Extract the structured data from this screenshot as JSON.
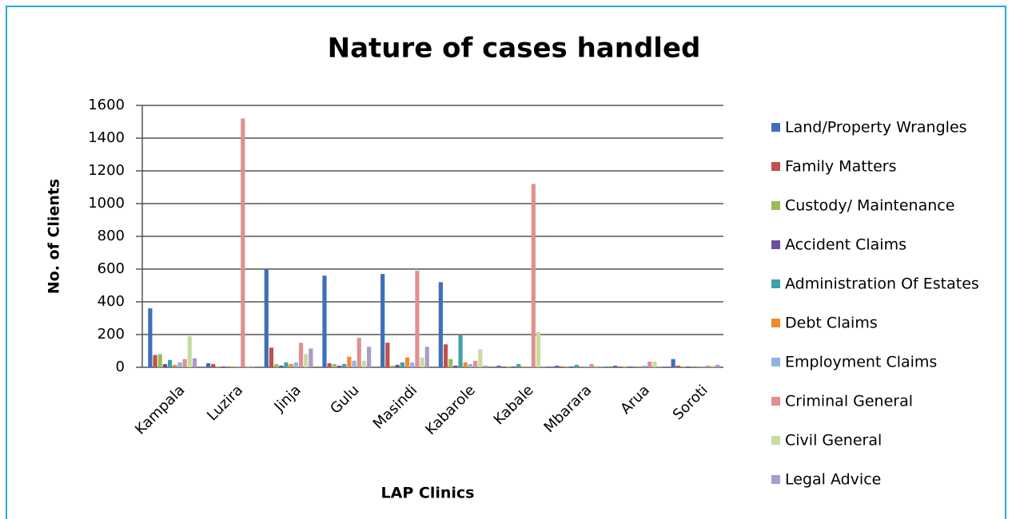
{
  "chart_data": {
    "type": "bar",
    "title": "Nature of cases handled",
    "x_label": "LAP Clinics",
    "y_label": "No. of Clients",
    "categories": [
      "Kampala",
      "Luzira",
      "Jinja",
      "Gulu",
      "Masindi",
      "Kabarole",
      "Kabale",
      "Mbarara",
      "Arua",
      "Soroti"
    ],
    "series": [
      {
        "name": "Land/Property Wrangles",
        "color": "#3f6fb6",
        "values": [
          360,
          25,
          600,
          560,
          570,
          520,
          10,
          10,
          10,
          50
        ]
      },
      {
        "name": "Family Matters",
        "color": "#c0504d",
        "values": [
          75,
          20,
          120,
          25,
          150,
          140,
          5,
          5,
          5,
          10
        ]
      },
      {
        "name": "Custody/ Maintenance",
        "color": "#9bbb59",
        "values": [
          80,
          5,
          20,
          20,
          10,
          50,
          5,
          5,
          5,
          5
        ]
      },
      {
        "name": "Accident Claims",
        "color": "#6a4f9a",
        "values": [
          20,
          5,
          10,
          10,
          15,
          10,
          5,
          5,
          5,
          5
        ]
      },
      {
        "name": "Administration Of Estates",
        "color": "#3aa3a9",
        "values": [
          45,
          5,
          30,
          20,
          30,
          195,
          20,
          15,
          5,
          5
        ]
      },
      {
        "name": "Debt Claims",
        "color": "#f28a2e",
        "values": [
          15,
          5,
          20,
          65,
          60,
          30,
          5,
          5,
          5,
          5
        ]
      },
      {
        "name": "Employment Claims",
        "color": "#8fb4e3",
        "values": [
          30,
          5,
          30,
          40,
          30,
          20,
          5,
          5,
          10,
          5
        ]
      },
      {
        "name": "Criminal General",
        "color": "#e0908e",
        "values": [
          50,
          1520,
          150,
          180,
          590,
          40,
          1120,
          20,
          35,
          10
        ]
      },
      {
        "name": "Civil General",
        "color": "#c8dba0",
        "values": [
          190,
          10,
          80,
          40,
          60,
          110,
          215,
          10,
          35,
          10
        ]
      },
      {
        "name": "Legal Advice",
        "color": "#a99cc8",
        "values": [
          55,
          5,
          115,
          125,
          125,
          10,
          5,
          5,
          5,
          15
        ]
      }
    ],
    "ylim": [
      0,
      1600
    ],
    "yticks": [
      0,
      200,
      400,
      600,
      800,
      1000,
      1200,
      1400,
      1600
    ],
    "grid": true,
    "legend": "right"
  }
}
